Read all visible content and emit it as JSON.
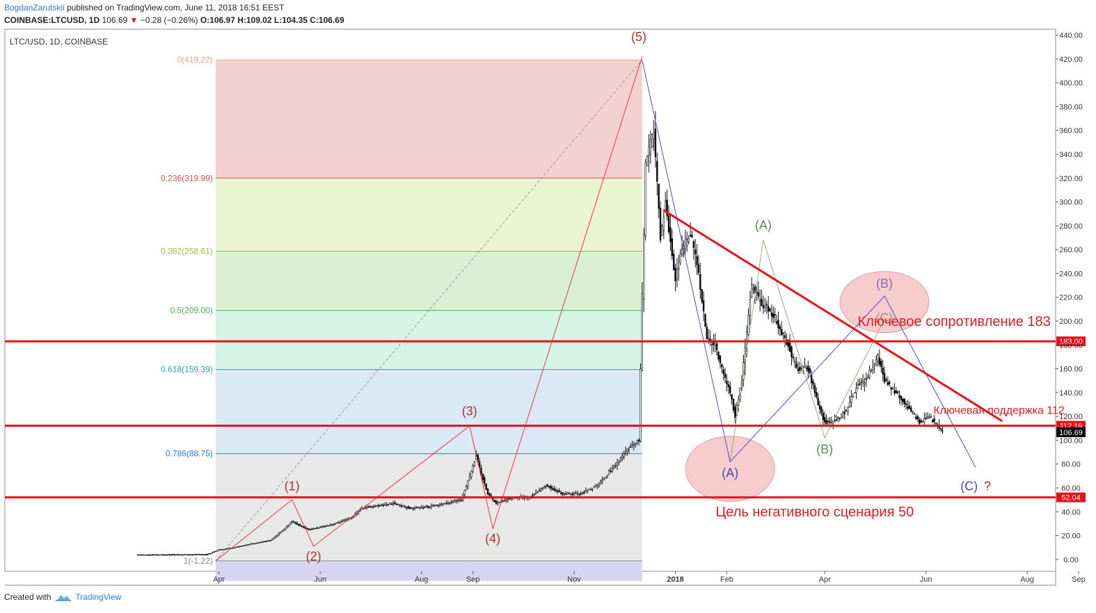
{
  "header": {
    "author": "BogdanZarutskii",
    "published": "published on TradingView.com, June 11, 2018 16:51 EEST",
    "symbol": "COINBASE:LTCUSD, 1D",
    "last": "106.69",
    "change": "−0.28 (−0.26%)",
    "ohlc": "O:106.97 H:109.02 L:104.35 C:106.69",
    "pane_title": "LTC/USD, 1D, COINBASE"
  },
  "footer": {
    "created_with": "Created with",
    "brand": "TradingView"
  },
  "colors": {
    "bull": "#2f2f2f",
    "bear": "#000000",
    "key_line": "#e8111a",
    "fan": "#e03a3a",
    "blue": "#4a4ad0",
    "green": "#6a9a6a"
  },
  "chart_data": {
    "type": "candlestick",
    "title": "LTC/USD, 1D, COINBASE",
    "ylim": [
      -10,
      445
    ],
    "y_ticks": [
      "0.00",
      "20.00",
      "40.00",
      "60.00",
      "80.00",
      "100.00",
      "120.00",
      "140.00",
      "160.00",
      "180.00",
      "200.00",
      "220.00",
      "240.00",
      "260.00",
      "280.00",
      "300.00",
      "320.00",
      "340.00",
      "360.00",
      "380.00",
      "400.00",
      "420.00",
      "440.00"
    ],
    "x_ticks": [
      {
        "label": "Apr",
        "date": "2017-04-01"
      },
      {
        "label": "Jun",
        "date": "2017-06-01"
      },
      {
        "label": "Aug",
        "date": "2017-08-01"
      },
      {
        "label": "Sep",
        "date": "2017-09-01"
      },
      {
        "label": "Nov",
        "date": "2017-11-01"
      },
      {
        "label": "2018",
        "date": "2018-01-01"
      },
      {
        "label": "Feb",
        "date": "2018-02-01"
      },
      {
        "label": "Apr",
        "date": "2018-04-01"
      },
      {
        "label": "Jun",
        "date": "2018-06-01"
      },
      {
        "label": "Aug",
        "date": "2018-08-01"
      },
      {
        "label": "Sep",
        "date": "2018-09-01"
      }
    ],
    "price_path": [
      [
        "2017-02-10",
        3.8
      ],
      [
        "2017-03-25",
        4.2
      ],
      [
        "2017-04-01",
        8
      ],
      [
        "2017-04-10",
        10
      ],
      [
        "2017-04-20",
        13
      ],
      [
        "2017-05-02",
        16
      ],
      [
        "2017-05-10",
        25
      ],
      [
        "2017-05-15",
        32
      ],
      [
        "2017-05-20",
        28
      ],
      [
        "2017-05-25",
        25
      ],
      [
        "2017-06-01",
        27
      ],
      [
        "2017-06-10",
        30
      ],
      [
        "2017-06-20",
        35
      ],
      [
        "2017-06-26",
        43
      ],
      [
        "2017-07-05",
        45
      ],
      [
        "2017-07-15",
        47
      ],
      [
        "2017-07-25",
        43
      ],
      [
        "2017-08-05",
        44
      ],
      [
        "2017-08-15",
        47
      ],
      [
        "2017-08-25",
        50
      ],
      [
        "2017-09-01",
        78
      ],
      [
        "2017-09-03",
        88
      ],
      [
        "2017-09-06",
        72
      ],
      [
        "2017-09-10",
        55
      ],
      [
        "2017-09-15",
        47
      ],
      [
        "2017-09-25",
        52
      ],
      [
        "2017-10-05",
        52
      ],
      [
        "2017-10-15",
        62
      ],
      [
        "2017-10-25",
        55
      ],
      [
        "2017-11-05",
        55
      ],
      [
        "2017-11-15",
        62
      ],
      [
        "2017-11-25",
        78
      ],
      [
        "2017-12-05",
        95
      ],
      [
        "2017-12-10",
        100
      ],
      [
        "2017-12-12",
        220
      ],
      [
        "2017-12-14",
        330
      ],
      [
        "2017-12-19",
        360
      ],
      [
        "2017-12-23",
        270
      ],
      [
        "2017-12-26",
        300
      ],
      [
        "2018-01-01",
        235
      ],
      [
        "2018-01-05",
        260
      ],
      [
        "2018-01-10",
        275
      ],
      [
        "2018-01-15",
        240
      ],
      [
        "2018-01-20",
        185
      ],
      [
        "2018-01-25",
        180
      ],
      [
        "2018-01-30",
        155
      ],
      [
        "2018-02-03",
        140
      ],
      [
        "2018-02-06",
        120
      ],
      [
        "2018-02-10",
        150
      ],
      [
        "2018-02-16",
        230
      ],
      [
        "2018-02-22",
        215
      ],
      [
        "2018-03-01",
        205
      ],
      [
        "2018-03-10",
        180
      ],
      [
        "2018-03-15",
        160
      ],
      [
        "2018-03-22",
        160
      ],
      [
        "2018-03-28",
        130
      ],
      [
        "2018-04-01",
        115
      ],
      [
        "2018-04-07",
        116
      ],
      [
        "2018-04-14",
        125
      ],
      [
        "2018-04-20",
        145
      ],
      [
        "2018-04-25",
        150
      ],
      [
        "2018-05-03",
        170
      ],
      [
        "2018-05-07",
        150
      ],
      [
        "2018-05-14",
        140
      ],
      [
        "2018-05-20",
        130
      ],
      [
        "2018-05-28",
        115
      ],
      [
        "2018-06-03",
        120
      ],
      [
        "2018-06-11",
        106.69
      ]
    ],
    "fib_levels": [
      {
        "ratio": "0",
        "label": "0(419.22)",
        "value": 419.22,
        "color": "#e8a0a0",
        "fill": "#f4d1d1"
      },
      {
        "ratio": "0.236",
        "label": "0.236(319.99)",
        "value": 319.99,
        "color": "#d85050",
        "fill": "#eaf3d2"
      },
      {
        "ratio": "0.382",
        "label": "0.382(258.61)",
        "value": 258.61,
        "color": "#9ab64a",
        "fill": "#d9f1d2"
      },
      {
        "ratio": "0.5",
        "label": "0.5(209.00)",
        "value": 209.0,
        "color": "#4caf50",
        "fill": "#d6f3e8"
      },
      {
        "ratio": "0.618",
        "label": "0.618(159.39)",
        "value": 159.39,
        "color": "#26a69a",
        "fill": "#d9e9f5"
      },
      {
        "ratio": "0.786",
        "label": "0.786(88.75)",
        "value": 88.75,
        "color": "#2b7bd6",
        "fill": "#e8e8e8"
      },
      {
        "ratio": "1",
        "label": "1(-1.22)",
        "value": -1.22,
        "color": "#888888",
        "fill": "#d6d3f3"
      }
    ],
    "fib_range": {
      "start": "2017-03-30",
      "end": "2017-12-12",
      "bottom": -18
    },
    "fib_diagonal": [
      [
        "2017-03-30",
        -1.22
      ],
      [
        "2017-12-12",
        419.22
      ]
    ],
    "horizontal_levels": [
      {
        "value": 183,
        "tag": "183.00",
        "label": "Ключевое сопротивление 183",
        "label_at": "2018-06-18",
        "label_y": 196
      },
      {
        "value": 112.19,
        "tag": "112.19",
        "label": "Ключевая поддержка 112",
        "label_at": "2018-07-15",
        "label_y": 122
      },
      {
        "value": 52.04,
        "tag": "52.04",
        "label": "Цель негативного сценария 50",
        "label_at": "2018-03-26",
        "label_y": 36
      }
    ],
    "last_price_tag": {
      "value": 106.69,
      "tag": "106.69"
    },
    "impulse_wave": {
      "points": [
        [
          "2017-03-30",
          -1.22
        ],
        [
          "2017-05-15",
          50
        ],
        [
          "2017-05-28",
          11
        ],
        [
          "2017-08-30",
          112
        ],
        [
          "2017-09-13",
          26
        ],
        [
          "2017-12-12",
          422
        ]
      ],
      "labels": [
        {
          "text": "(1)",
          "date": "2017-05-15",
          "y": 58
        },
        {
          "text": "(2)",
          "date": "2017-05-28",
          "y": -1
        },
        {
          "text": "(3)",
          "date": "2017-08-30",
          "y": 121
        },
        {
          "text": "(4)",
          "date": "2017-09-13",
          "y": 14
        },
        {
          "text": "(5)",
          "date": "2017-12-10",
          "y": 435
        }
      ]
    },
    "correction_blue": {
      "points": [
        [
          "2017-12-12",
          419
        ],
        [
          "2018-02-03",
          82
        ],
        [
          "2018-05-07",
          221
        ],
        [
          "2018-07-01",
          77
        ]
      ],
      "labels": [
        {
          "text": "(A)",
          "date": "2018-02-03",
          "y": 69
        },
        {
          "text": "(B)",
          "date": "2018-05-07",
          "y": 228
        },
        {
          "text": "(C)",
          "date": "2018-06-27",
          "y": 58
        }
      ],
      "question": {
        "text": "?",
        "date": "2018-07-08",
        "y": 58
      }
    },
    "correction_green": {
      "points": [
        [
          "2018-02-03",
          82
        ],
        [
          "2018-02-23",
          268
        ],
        [
          "2018-04-01",
          102
        ],
        [
          "2018-05-05",
          196
        ]
      ],
      "labels": [
        {
          "text": "(A)",
          "date": "2018-02-23",
          "y": 277
        },
        {
          "text": "(B)",
          "date": "2018-04-01",
          "y": 89
        },
        {
          "text": "(C)",
          "date": "2018-05-07",
          "y": 199
        }
      ]
    },
    "triangle_line": [
      [
        "2017-12-25",
        293
      ],
      [
        "2018-07-17",
        116
      ]
    ],
    "ellipses": [
      {
        "date": "2018-02-03",
        "y": 76,
        "rx": 64,
        "ry": 47
      },
      {
        "date": "2018-05-07",
        "y": 216,
        "rx": 64,
        "ry": 44
      }
    ]
  }
}
